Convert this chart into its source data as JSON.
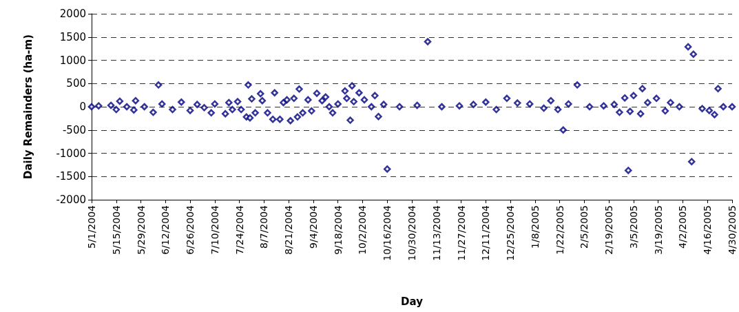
{
  "chart_data": {
    "type": "scatter",
    "xlabel": "Day",
    "ylabel": "Daily Remainders (ha-m)",
    "marker": "diamond",
    "grid": "y",
    "xlim": [
      "2004-05-01",
      "2005-04-30"
    ],
    "xticks": [
      {
        "value": "2004-05-01",
        "label": "5/1/2004"
      },
      {
        "value": "2004-05-15",
        "label": "5/15/2004"
      },
      {
        "value": "2004-05-29",
        "label": "5/29/2004"
      },
      {
        "value": "2004-06-12",
        "label": "6/12/2004"
      },
      {
        "value": "2004-06-26",
        "label": "6/26/2004"
      },
      {
        "value": "2004-07-10",
        "label": "7/10/2004"
      },
      {
        "value": "2004-07-24",
        "label": "7/24/2004"
      },
      {
        "value": "2004-08-07",
        "label": "8/7/2004"
      },
      {
        "value": "2004-08-21",
        "label": "8/21/2004"
      },
      {
        "value": "2004-09-04",
        "label": "9/4/2004"
      },
      {
        "value": "2004-09-18",
        "label": "9/18/2004"
      },
      {
        "value": "2004-10-02",
        "label": "10/2/2004"
      },
      {
        "value": "2004-10-16",
        "label": "10/16/2004"
      },
      {
        "value": "2004-10-30",
        "label": "10/30/2004"
      },
      {
        "value": "2004-11-13",
        "label": "11/13/2004"
      },
      {
        "value": "2004-11-27",
        "label": "11/27/2004"
      },
      {
        "value": "2004-12-11",
        "label": "12/11/2004"
      },
      {
        "value": "2004-12-25",
        "label": "12/25/2004"
      },
      {
        "value": "2005-01-08",
        "label": "1/8/2005"
      },
      {
        "value": "2005-01-22",
        "label": "1/22/2005"
      },
      {
        "value": "2005-02-05",
        "label": "2/5/2005"
      },
      {
        "value": "2005-02-19",
        "label": "2/19/2005"
      },
      {
        "value": "2005-03-05",
        "label": "3/5/2005"
      },
      {
        "value": "2005-03-19",
        "label": "3/19/2005"
      },
      {
        "value": "2005-04-02",
        "label": "4/2/2005"
      },
      {
        "value": "2005-04-16",
        "label": "4/16/2005"
      },
      {
        "value": "2005-04-30",
        "label": "4/30/2005"
      }
    ],
    "ylim": [
      -2000,
      2000
    ],
    "yticks": [
      -2000,
      -1500,
      -1000,
      -500,
      0,
      500,
      1000,
      1500,
      2000
    ],
    "series": [
      {
        "color": "#000080",
        "x": [
          "2004-05-01",
          "2004-05-05",
          "2004-05-12",
          "2004-05-15",
          "2004-05-17",
          "2004-05-21",
          "2004-05-25",
          "2004-05-26",
          "2004-05-31",
          "2004-06-05",
          "2004-06-08",
          "2004-06-10",
          "2004-06-16",
          "2004-06-21",
          "2004-06-26",
          "2004-06-30",
          "2004-07-04",
          "2004-07-08",
          "2004-07-10",
          "2004-07-16",
          "2004-07-18",
          "2004-07-20",
          "2004-07-23",
          "2004-07-25",
          "2004-07-28",
          "2004-07-29",
          "2004-07-30",
          "2004-07-31",
          "2004-08-02",
          "2004-08-05",
          "2004-08-06",
          "2004-08-09",
          "2004-08-12",
          "2004-08-13",
          "2004-08-16",
          "2004-08-18",
          "2004-08-20",
          "2004-08-22",
          "2004-08-24",
          "2004-08-26",
          "2004-08-27",
          "2004-08-29",
          "2004-09-01",
          "2004-09-03",
          "2004-09-06",
          "2004-09-09",
          "2004-09-11",
          "2004-09-13",
          "2004-09-15",
          "2004-09-18",
          "2004-09-22",
          "2004-09-23",
          "2004-09-25",
          "2004-09-26",
          "2004-09-27",
          "2004-09-30",
          "2004-10-03",
          "2004-10-07",
          "2004-10-09",
          "2004-10-11",
          "2004-10-14",
          "2004-10-16",
          "2004-10-23",
          "2004-11-02",
          "2004-11-08",
          "2004-11-16",
          "2004-11-26",
          "2004-12-04",
          "2004-12-11",
          "2004-12-17",
          "2004-12-23",
          "2004-12-29",
          "2005-01-05",
          "2005-01-13",
          "2005-01-17",
          "2005-01-21",
          "2005-01-24",
          "2005-01-27",
          "2005-02-01",
          "2005-02-08",
          "2005-02-16",
          "2005-02-22",
          "2005-02-25",
          "2005-02-28",
          "2005-03-02",
          "2005-03-03",
          "2005-03-05",
          "2005-03-09",
          "2005-03-10",
          "2005-03-13",
          "2005-03-18",
          "2005-03-23",
          "2005-03-26",
          "2005-03-31",
          "2005-04-05",
          "2005-04-07",
          "2005-04-08",
          "2005-04-13",
          "2005-04-17",
          "2005-04-20",
          "2005-04-22",
          "2005-04-25",
          "2005-04-30"
        ],
        "values": [
          0,
          20,
          30,
          -60,
          120,
          0,
          -70,
          130,
          0,
          -120,
          470,
          60,
          -60,
          100,
          -80,
          50,
          -20,
          -130,
          60,
          -150,
          90,
          -60,
          110,
          -60,
          -220,
          470,
          -240,
          170,
          -130,
          280,
          130,
          -130,
          -270,
          300,
          -270,
          90,
          150,
          -300,
          180,
          -220,
          380,
          -130,
          150,
          -90,
          290,
          130,
          210,
          0,
          -130,
          60,
          340,
          180,
          -290,
          450,
          110,
          300,
          150,
          0,
          240,
          -210,
          50,
          -1340,
          0,
          30,
          1400,
          0,
          20,
          50,
          100,
          -60,
          180,
          80,
          60,
          -30,
          130,
          -60,
          -500,
          60,
          470,
          0,
          20,
          50,
          -120,
          190,
          -1370,
          -100,
          240,
          -150,
          390,
          90,
          180,
          -90,
          90,
          0,
          1290,
          -1180,
          1130,
          -40,
          -80,
          -170,
          390,
          0,
          0
        ]
      }
    ]
  }
}
